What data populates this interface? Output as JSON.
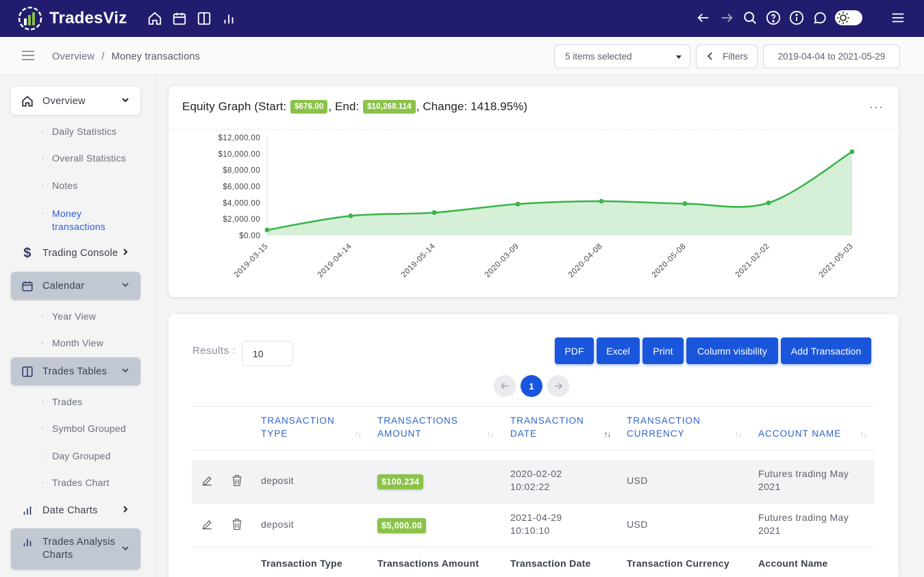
{
  "app": {
    "name": "TradesViz"
  },
  "colors": {
    "topbar": "#221c6e",
    "accent": "#1a56db",
    "badge": "#8bc34a",
    "line": "#3bb54a"
  },
  "topnav": {
    "icons": [
      "home-icon",
      "calendar-icon",
      "table-icon",
      "bar-chart-icon"
    ],
    "right_icons": [
      "back-arrow-icon",
      "forward-arrow-icon",
      "search-icon",
      "help-icon",
      "info-icon",
      "chat-icon",
      "theme-toggle",
      "hamburger-icon"
    ]
  },
  "breadcrumb": {
    "parent": "Overview",
    "separator": "/",
    "current": "Money transactions"
  },
  "toolbar": {
    "select_value": "5 items selected",
    "filters_label": "Filters",
    "date_range": "2019-04-04 to 2021-05-29"
  },
  "sidebar": {
    "overview": "Overview",
    "overview_sub": [
      "Daily Statistics",
      "Overall Statistics",
      "Notes",
      "Money transactions"
    ],
    "trading_console": "Trading Console",
    "calendar": "Calendar",
    "calendar_sub": [
      "Year View",
      "Month View"
    ],
    "trades_tables": "Trades Tables",
    "trades_sub": [
      "Trades",
      "Symbol Grouped",
      "Day Grouped",
      "Trades Chart"
    ],
    "date_charts": "Date Charts",
    "trades_analysis": "Trades Analysis Charts"
  },
  "equity": {
    "title_prefix": "Equity Graph (Start: ",
    "start": "$676.00",
    "end_label": ", End: ",
    "end": "$10,268.114",
    "change_label": ", Change: 1418.95%)"
  },
  "chart_data": {
    "type": "area",
    "title": "Equity Graph",
    "x": [
      "2019-03-15",
      "2019-04-14",
      "2019-05-14",
      "2020-03-09",
      "2020-04-08",
      "2020-05-08",
      "2021-02-02",
      "2021-05-03"
    ],
    "values": [
      676,
      2400,
      2800,
      3850,
      4200,
      3900,
      4000,
      10268.114
    ],
    "y_ticks": [
      "$0.00",
      "$2,000.00",
      "$4,000.00",
      "$6,000.00",
      "$8,000.00",
      "$10,000.00",
      "$12,000.00"
    ],
    "ylim": [
      0,
      12000
    ],
    "grid": false
  },
  "table": {
    "results_label": "Results :",
    "results_value": "10",
    "buttons": [
      "PDF",
      "Excel",
      "Print",
      "Column visibility",
      "Add Transaction"
    ],
    "page": "1",
    "headers": [
      {
        "l1": "TRANSACTION",
        "l2": "TYPE"
      },
      {
        "l1": "TRANSACTIONS",
        "l2": "AMOUNT"
      },
      {
        "l1": "TRANSACTION",
        "l2": "DATE"
      },
      {
        "l1": "TRANSACTION",
        "l2": "CURRENCY"
      },
      {
        "l1": "ACCOUNT NAME",
        "l2": ""
      }
    ],
    "rows": [
      {
        "type": "deposit",
        "amount": "$100.234",
        "date1": "2020-02-02",
        "date2": "10:02:22",
        "currency": "USD",
        "acct1": "Futures trading May",
        "acct2": "2021"
      },
      {
        "type": "deposit",
        "amount": "$5,000.00",
        "date1": "2021-04-29",
        "date2": "10:10:10",
        "currency": "USD",
        "acct1": "Futures trading May",
        "acct2": "2021"
      }
    ],
    "footer": [
      "Transaction Type",
      "Transactions Amount",
      "Transaction Date",
      "Transaction Currency",
      "Account Name"
    ]
  }
}
